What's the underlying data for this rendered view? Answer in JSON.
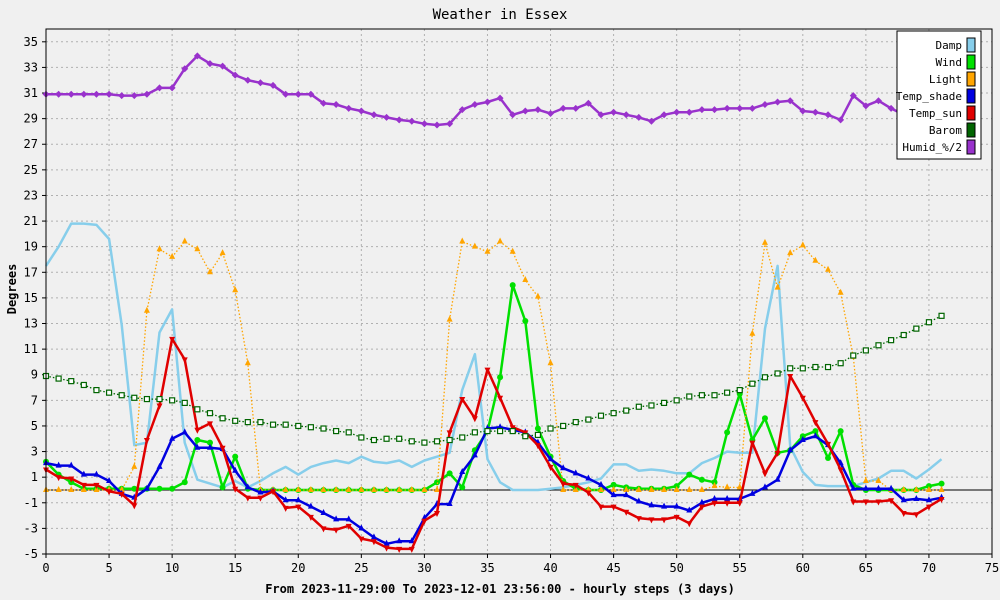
{
  "chart_data": {
    "type": "line",
    "title": "Weather in Essex",
    "xlabel": "From 2023-11-29:00 To 2023-12-01 23:56:00 - hourly steps (3 days)",
    "ylabel": "Degrees",
    "xlim": [
      0,
      75
    ],
    "ylim": [
      -5,
      36
    ],
    "x_ticks": [
      0,
      5,
      10,
      15,
      20,
      25,
      30,
      35,
      40,
      45,
      50,
      55,
      60,
      65,
      70,
      75
    ],
    "y_ticks": [
      -5,
      -3,
      -1,
      1,
      3,
      5,
      7,
      9,
      11,
      13,
      15,
      17,
      19,
      21,
      23,
      25,
      27,
      29,
      31,
      33,
      35
    ],
    "grid": true,
    "legend_position": "top-right",
    "zero_line": 0,
    "background_color": "#f0f0f0",
    "series": [
      {
        "name": "Damp",
        "color": "#87ceeb",
        "style": "solid",
        "marker": "none",
        "values": [
          17.5,
          19,
          20.8,
          20.8,
          20.7,
          19.6,
          12.9,
          3.5,
          3.7,
          12.3,
          14.1,
          3.7,
          0.8,
          0.5,
          0.2,
          0.7,
          0.2,
          0.7,
          1.3,
          1.8,
          1.2,
          1.8,
          2.1,
          2.3,
          2.1,
          2.6,
          2.2,
          2.1,
          2.3,
          1.8,
          2.3,
          2.6,
          2.9,
          7.8,
          10.6,
          2.4,
          0.6,
          0,
          0,
          0,
          0.1,
          0.2,
          0.4,
          0.6,
          0.9,
          2,
          2,
          1.5,
          1.6,
          1.5,
          1.3,
          1.3,
          2.1,
          2.5,
          3,
          2.9,
          2.9,
          12.6,
          17.5,
          3.4,
          1.4,
          0.4,
          0.3,
          0.3,
          0.3,
          0.6,
          0.9,
          1.5,
          1.5,
          0.9,
          1.6,
          2.4
        ]
      },
      {
        "name": "Wind",
        "color": "#00e000",
        "style": "solid",
        "marker": "circle",
        "values": [
          2.2,
          1.2,
          0.6,
          0.1,
          0.1,
          0.1,
          0.1,
          0.1,
          0.1,
          0.1,
          0.1,
          0.6,
          3.9,
          3.7,
          0.2,
          2.6,
          0.1,
          0,
          0,
          0,
          0,
          0,
          0,
          0,
          0,
          0,
          0,
          0,
          0,
          0,
          0,
          0.6,
          1.3,
          0.2,
          3.1,
          4.6,
          8.8,
          16,
          13.2,
          4.8,
          2.6,
          0.7,
          0.1,
          0,
          0,
          0.4,
          0.2,
          0.1,
          0.1,
          0.1,
          0.3,
          1.2,
          0.8,
          0.6,
          4.5,
          7.5,
          3.9,
          5.6,
          2.9,
          3.1,
          4.2,
          4.6,
          2.5,
          4.6,
          0.4,
          0,
          0,
          0,
          0,
          0,
          0.3,
          0.5
        ]
      },
      {
        "name": "Light",
        "color": "#ffa500",
        "style": "dotted",
        "marker": "triangle",
        "values": [
          0,
          0,
          0,
          0,
          0,
          0,
          0,
          1.8,
          14,
          18.8,
          18.2,
          19.4,
          18.8,
          17,
          18.5,
          15.6,
          9.9,
          0,
          0,
          0,
          0,
          0,
          0,
          0,
          0,
          0,
          0,
          0,
          0,
          0,
          0,
          0,
          13.3,
          19.4,
          19,
          18.6,
          19.4,
          18.6,
          16.4,
          15.1,
          9.9,
          0,
          0,
          0,
          0,
          0,
          0,
          0,
          0,
          0,
          0,
          0,
          0,
          0.3,
          0.2,
          0.2,
          12.2,
          19.3,
          15.8,
          18.5,
          19.1,
          17.9,
          17.2,
          15.4,
          10.4,
          0.7,
          0.7,
          0,
          0,
          0,
          0,
          0
        ]
      },
      {
        "name": "Temp_shade",
        "color": "#0000e0",
        "style": "solid",
        "marker": "triangle",
        "values": [
          2.1,
          1.9,
          1.9,
          1.2,
          1.2,
          0.7,
          -0.3,
          -0.6,
          0.1,
          1.8,
          4,
          4.5,
          3.3,
          3.3,
          3.2,
          1.5,
          0.2,
          -0.2,
          -0.1,
          -0.8,
          -0.8,
          -1.3,
          -1.8,
          -2.3,
          -2.3,
          -3,
          -3.7,
          -4.2,
          -4,
          -4,
          -2.2,
          -1.1,
          -1.1,
          1.4,
          2.7,
          4.8,
          4.9,
          4.7,
          4.5,
          3.7,
          2.4,
          1.7,
          1.3,
          0.9,
          0.4,
          -0.4,
          -0.4,
          -0.9,
          -1.2,
          -1.3,
          -1.3,
          -1.6,
          -1,
          -0.7,
          -0.7,
          -0.7,
          -0.3,
          0.2,
          0.8,
          3.1,
          3.9,
          4.2,
          3.5,
          2.1,
          0.1,
          0.1,
          0.1,
          0.1,
          -0.8,
          -0.7,
          -0.8,
          -0.6
        ]
      },
      {
        "name": "Temp_sun",
        "color": "#e00000",
        "style": "solid",
        "marker": "invtriangle",
        "values": [
          1.6,
          1,
          0.9,
          0.4,
          0.4,
          -0.1,
          -0.3,
          -1.2,
          3.9,
          6.6,
          11.8,
          10.2,
          4.7,
          5.2,
          3.3,
          0.1,
          -0.6,
          -0.6,
          -0.1,
          -1.4,
          -1.3,
          -2.1,
          -3,
          -3.1,
          -2.8,
          -3.8,
          -4,
          -4.5,
          -4.6,
          -4.6,
          -2.4,
          -1.8,
          4.5,
          7.1,
          5.6,
          9.4,
          7.2,
          4.9,
          4.5,
          3.5,
          1.8,
          0.5,
          0.4,
          -0.2,
          -1.3,
          -1.3,
          -1.7,
          -2.2,
          -2.3,
          -2.3,
          -2.1,
          -2.6,
          -1.3,
          -1,
          -1,
          -1,
          3.7,
          1.3,
          2.9,
          8.9,
          7.2,
          5.3,
          3.6,
          1.6,
          -0.9,
          -0.9,
          -0.9,
          -0.8,
          -1.8,
          -1.9,
          -1.3,
          -0.7
        ]
      },
      {
        "name": "Barom",
        "color": "#006400",
        "style": "dotted",
        "marker": "square",
        "values": [
          8.9,
          8.7,
          8.5,
          8.2,
          7.8,
          7.6,
          7.4,
          7.2,
          7.1,
          7.1,
          7,
          6.8,
          6.3,
          6,
          5.6,
          5.4,
          5.3,
          5.3,
          5.1,
          5.1,
          5,
          4.9,
          4.8,
          4.6,
          4.5,
          4.1,
          3.9,
          4,
          4,
          3.8,
          3.7,
          3.8,
          3.9,
          4.1,
          4.5,
          4.6,
          4.6,
          4.6,
          4.2,
          4.3,
          4.8,
          5,
          5.3,
          5.5,
          5.8,
          6,
          6.2,
          6.5,
          6.6,
          6.8,
          7,
          7.3,
          7.4,
          7.4,
          7.6,
          7.8,
          8.3,
          8.8,
          9.1,
          9.5,
          9.5,
          9.6,
          9.6,
          9.9,
          10.5,
          10.9,
          11.3,
          11.7,
          12.1,
          12.6,
          13.1,
          13.6
        ]
      },
      {
        "name": "Humid_%/2",
        "color": "#9932cc",
        "style": "solid",
        "marker": "diamond",
        "values": [
          30.9,
          30.9,
          30.9,
          30.9,
          30.9,
          30.9,
          30.8,
          30.8,
          30.9,
          31.4,
          31.4,
          32.9,
          33.9,
          33.3,
          33.1,
          32.4,
          32,
          31.8,
          31.6,
          30.9,
          30.9,
          30.9,
          30.2,
          30.1,
          29.8,
          29.6,
          29.3,
          29.1,
          28.9,
          28.8,
          28.6,
          28.5,
          28.6,
          29.7,
          30.1,
          30.3,
          30.6,
          29.3,
          29.6,
          29.7,
          29.4,
          29.8,
          29.8,
          30.2,
          29.3,
          29.5,
          29.3,
          29.1,
          28.8,
          29.3,
          29.5,
          29.5,
          29.7,
          29.7,
          29.8,
          29.8,
          29.8,
          30.1,
          30.3,
          30.4,
          29.6,
          29.5,
          29.3,
          28.9,
          30.8,
          30,
          30.4,
          29.8,
          29.3,
          29.2,
          29.1,
          29.1
        ]
      }
    ]
  }
}
